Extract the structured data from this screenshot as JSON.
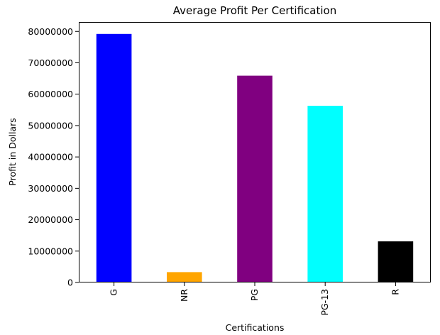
{
  "chart_data": {
    "type": "bar",
    "title": "Average Profit Per Certification",
    "xlabel": "Certifications",
    "ylabel": "Profit in Dollars",
    "categories": [
      "G",
      "NR",
      "PG",
      "PG-13",
      "R"
    ],
    "values": [
      79200000,
      3300000,
      65900000,
      56300000,
      13100000
    ],
    "colors": [
      "#0000ff",
      "#ffa500",
      "#800080",
      "#00ffff",
      "#000000"
    ],
    "ylim": [
      0,
      83000000
    ],
    "yticks": [
      0,
      10000000,
      20000000,
      30000000,
      40000000,
      50000000,
      60000000,
      70000000,
      80000000
    ],
    "ytick_labels": [
      "0",
      "10000000",
      "20000000",
      "30000000",
      "40000000",
      "50000000",
      "60000000",
      "70000000",
      "80000000"
    ],
    "grid": false,
    "legend": false
  }
}
